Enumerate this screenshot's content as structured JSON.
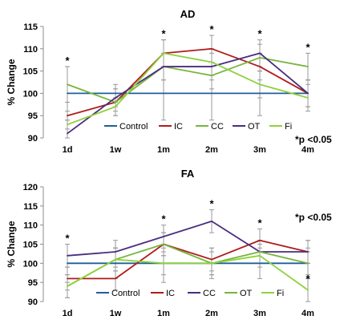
{
  "chart_data": [
    {
      "type": "line",
      "title": "AD",
      "xlabel": "",
      "ylabel": "% Change",
      "categories": [
        "1d",
        "1w",
        "1m",
        "2m",
        "3m",
        "4m"
      ],
      "ylim": [
        90,
        115
      ],
      "yticks": [
        "90",
        "95",
        "100",
        "105",
        "110",
        "115"
      ],
      "grid": false,
      "legend_position": "bottom",
      "significance_note": "*p <0.05",
      "asterisks": [
        "*",
        "*",
        "*",
        "*",
        "*"
      ],
      "asterisk_categories": [
        0,
        2,
        3,
        4,
        5
      ],
      "series": [
        {
          "name": "Control",
          "color": "#1f5f99",
          "values": [
            100,
            100,
            100,
            100,
            100,
            100
          ],
          "errors": [
            6,
            2,
            6,
            6,
            5,
            3
          ]
        },
        {
          "name": "IC",
          "color": "#b01c1c",
          "values": [
            95,
            98,
            109,
            110,
            106,
            100
          ],
          "errors": [
            3,
            2,
            3,
            3,
            3,
            3
          ]
        },
        {
          "name": "CC",
          "color": "#76b53c",
          "values": [
            102,
            98,
            106,
            104,
            108,
            106
          ],
          "errors": [
            4,
            3,
            3,
            3,
            3,
            3
          ]
        },
        {
          "name": "OT",
          "color": "#4a2d80",
          "values": [
            91,
            99,
            106,
            106,
            109,
            100
          ],
          "errors": [
            3,
            2,
            3,
            3,
            3,
            3
          ]
        },
        {
          "name": "Fi",
          "color": "#8ed23b",
          "values": [
            93,
            97,
            109,
            107,
            102,
            99
          ],
          "errors": [
            3,
            2,
            3,
            3,
            3,
            3
          ]
        }
      ]
    },
    {
      "type": "line",
      "title": "FA",
      "xlabel": "",
      "ylabel": "% Change",
      "categories": [
        "1d",
        "1w",
        "1m",
        "2m",
        "3m",
        "4m"
      ],
      "ylim": [
        90,
        120
      ],
      "yticks": [
        "90",
        "95",
        "100",
        "105",
        "110",
        "115",
        "120"
      ],
      "grid": false,
      "legend_position": "bottom",
      "significance_note": "*p <0.05",
      "asterisks": [
        "*",
        "*",
        "*",
        "*",
        "*"
      ],
      "asterisk_categories": [
        0,
        2,
        3,
        4,
        5
      ],
      "series": [
        {
          "name": "Control",
          "color": "#1f5f99",
          "values": [
            100,
            100,
            100,
            100,
            100,
            100
          ],
          "errors": [
            5,
            4,
            5,
            4,
            4,
            4
          ]
        },
        {
          "name": "IC",
          "color": "#b01c1c",
          "values": [
            96,
            96,
            105,
            101,
            106,
            103
          ],
          "errors": [
            3,
            3,
            3,
            3,
            3,
            3
          ]
        },
        {
          "name": "CC",
          "color": "#4a2d80",
          "values": [
            102,
            103,
            107,
            111,
            103,
            103
          ],
          "errors": [
            3,
            3,
            3,
            3,
            3,
            3
          ]
        },
        {
          "name": "OT",
          "color": "#76b53c",
          "values": [
            94,
            101,
            105,
            100,
            103,
            100
          ],
          "errors": [
            3,
            3,
            3,
            3,
            3,
            3
          ]
        },
        {
          "name": "Fi",
          "color": "#8ed23b",
          "values": [
            94,
            101,
            100,
            100,
            102,
            93
          ],
          "errors": [
            3,
            3,
            3,
            3,
            3,
            3
          ]
        }
      ]
    }
  ]
}
